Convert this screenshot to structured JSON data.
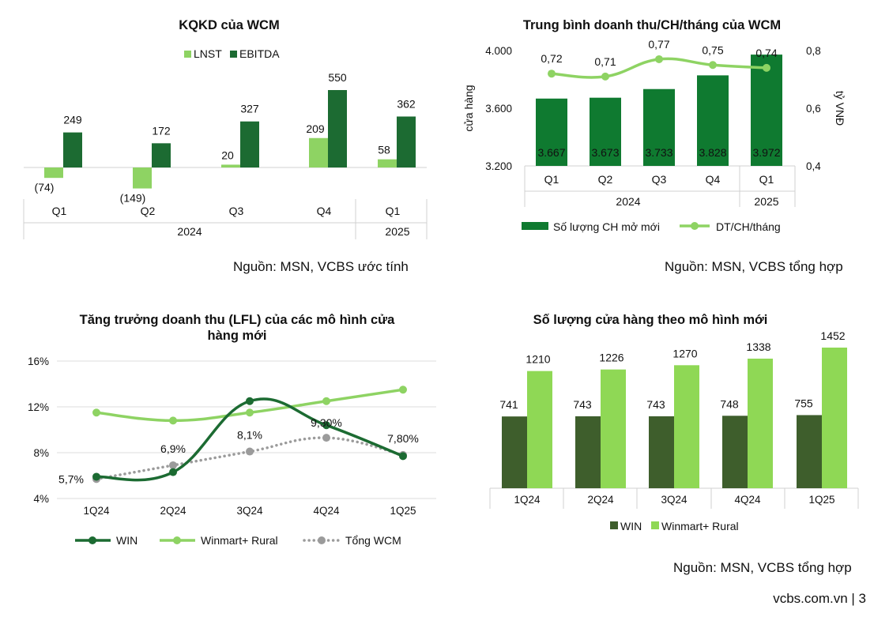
{
  "colors": {
    "light_green": "#8ed363",
    "dark_green": "#1c6b32",
    "mid_green": "#0f7a30",
    "bar_dark": "#3e5e2c",
    "bar_light": "#8fd855",
    "gray_dots": "#9b9b9b",
    "axis": "#d0d0d0"
  },
  "chart_data": [
    {
      "type": "bar",
      "title": "KQKD của WCM",
      "categories": [
        "Q1",
        "Q2",
        "Q3",
        "Q4",
        "Q1"
      ],
      "group_labels": [
        "2024",
        "2025"
      ],
      "series": [
        {
          "name": "LNST",
          "values": [
            -74,
            -149,
            20,
            209,
            58
          ],
          "labels": [
            "(74)",
            "(149)",
            "20",
            "209",
            "58"
          ]
        },
        {
          "name": "EBITDA",
          "values": [
            249,
            172,
            327,
            550,
            362
          ],
          "labels": [
            "249",
            "172",
            "327",
            "550",
            "362"
          ]
        }
      ],
      "ylim": [
        -160,
        560
      ],
      "grid": false,
      "legend": "top-center"
    },
    {
      "type": "bar",
      "title": "Trung bình doanh thu/CH/tháng của WCM",
      "categories": [
        "Q1",
        "Q2",
        "Q3",
        "Q4",
        "Q1"
      ],
      "group_labels": [
        "2024",
        "2025"
      ],
      "ylabel_left": "cửa hàng",
      "ylabel_right": "tỷ VNĐ",
      "left_ticks": [
        "3.200",
        "3.600",
        "4.000"
      ],
      "right_ticks": [
        "0,4",
        "0,6",
        "0,8"
      ],
      "left_ylim": [
        3200,
        4000
      ],
      "right_ylim": [
        0.4,
        0.8
      ],
      "series": [
        {
          "name": "Số lượng CH mở mới",
          "type": "bar",
          "axis": "left",
          "values": [
            3667,
            3673,
            3733,
            3828,
            3972
          ],
          "labels": [
            "3.667",
            "3.673",
            "3.733",
            "3.828",
            "3.972"
          ]
        },
        {
          "name": "DT/CH/tháng",
          "type": "line",
          "axis": "right",
          "values": [
            0.72,
            0.71,
            0.77,
            0.75,
            0.74
          ],
          "labels": [
            "0,72",
            "0,71",
            "0,77",
            "0,75",
            "0,74"
          ]
        }
      ],
      "legend": "bottom"
    },
    {
      "type": "line",
      "title_lines": [
        "Tăng trưởng doanh thu (LFL) của các mô hình cửa",
        "hàng mới"
      ],
      "categories": [
        "1Q24",
        "2Q24",
        "3Q24",
        "4Q24",
        "1Q25"
      ],
      "y_ticks": [
        "4%",
        "8%",
        "12%",
        "16%"
      ],
      "ylim": [
        4,
        16
      ],
      "series": [
        {
          "name": "WIN",
          "values": [
            5.9,
            6.3,
            12.5,
            10.4,
            7.7
          ]
        },
        {
          "name": "Winmart+ Rural",
          "values": [
            11.5,
            10.8,
            11.5,
            12.5,
            13.5
          ]
        },
        {
          "name": "Tổng WCM",
          "values": [
            5.7,
            6.9,
            8.1,
            9.3,
            7.8
          ],
          "labels": [
            "5,7%",
            "6,9%",
            "8,1%",
            "9,30%",
            "7,80%"
          ]
        }
      ],
      "grid": true,
      "legend": "bottom"
    },
    {
      "type": "bar",
      "title": "Số lượng cửa hàng theo mô hình mới",
      "categories": [
        "1Q24",
        "2Q24",
        "3Q24",
        "4Q24",
        "1Q25"
      ],
      "series": [
        {
          "name": "WIN",
          "values": [
            741,
            743,
            743,
            748,
            755
          ],
          "labels": [
            "741",
            "743",
            "743",
            "748",
            "755"
          ]
        },
        {
          "name": "Winmart+ Rural",
          "values": [
            1210,
            1226,
            1270,
            1338,
            1452
          ],
          "labels": [
            "1210",
            "1226",
            "1270",
            "1338",
            "1452"
          ]
        }
      ],
      "ylim": [
        0,
        1500
      ],
      "grid": false,
      "legend": "bottom"
    }
  ],
  "sources": {
    "s1": "Nguồn: MSN, VCBS ước tính",
    "s2": "Nguồn: MSN, VCBS tổng hợp",
    "s3": "Nguồn: MSN, VCBS tổng hợp"
  },
  "footer": "vcbs.com.vn | 3"
}
